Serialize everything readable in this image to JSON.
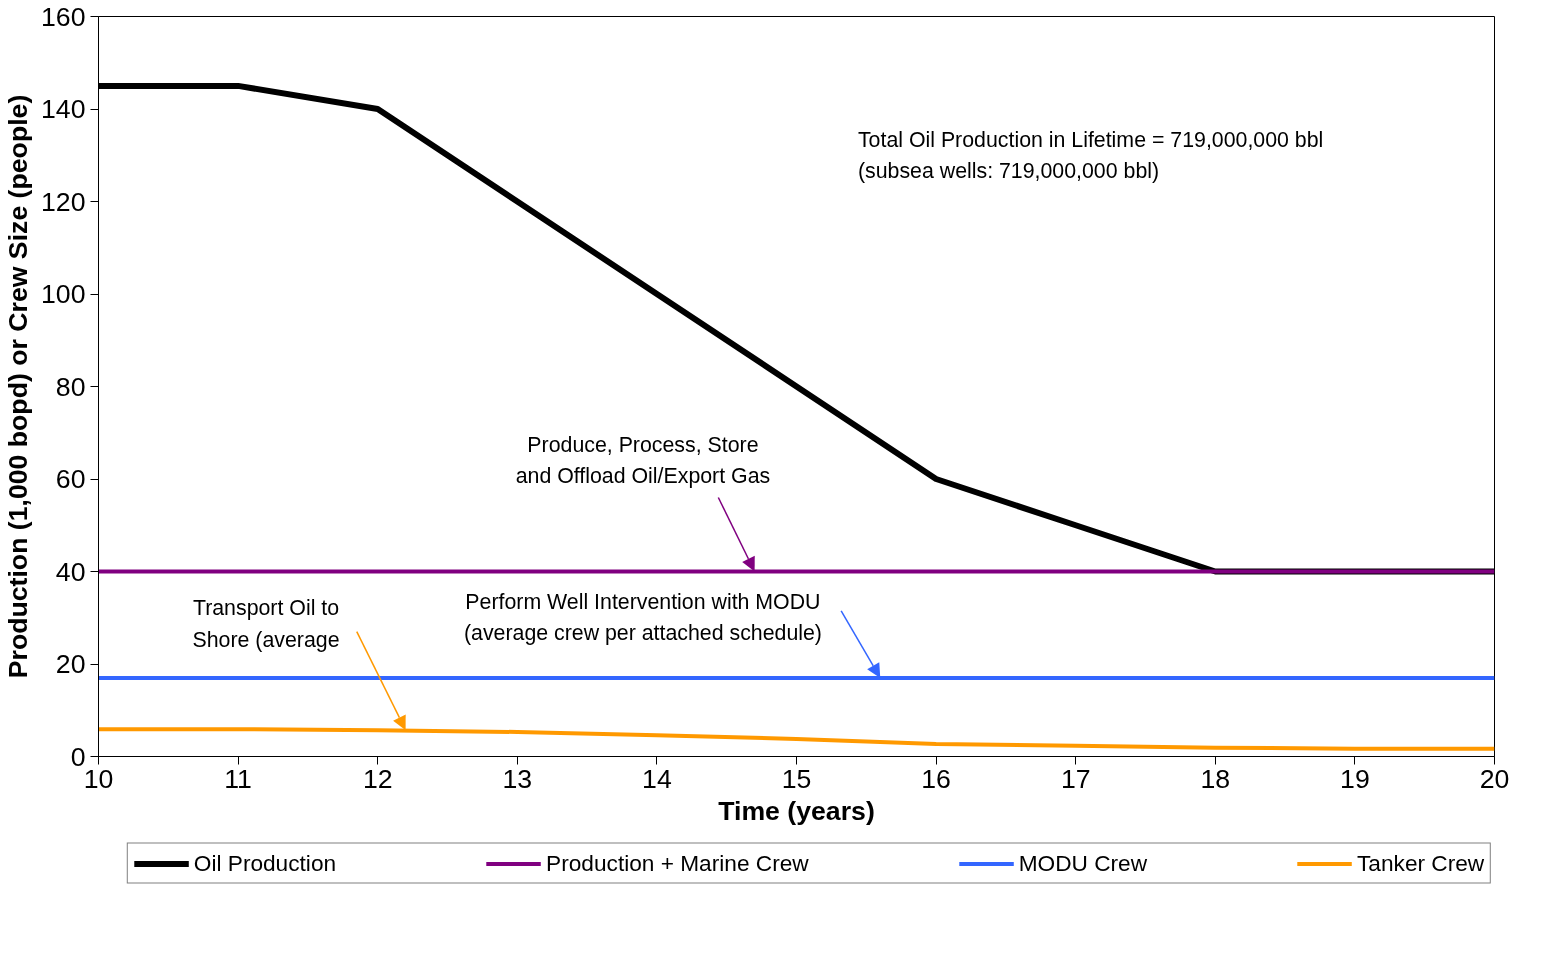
{
  "chart_data": {
    "type": "line",
    "xlabel": "Time (years)",
    "ylabel": "Production (1,000 bopd) or Crew Size (people)",
    "x": [
      10,
      11,
      12,
      13,
      14,
      15,
      16,
      17,
      18,
      19,
      20
    ],
    "series": [
      {
        "name": "Oil Production",
        "color": "#000000",
        "values": [
          145,
          145,
          140,
          120,
          100,
          80,
          60,
          50,
          40,
          40,
          40
        ]
      },
      {
        "name": "Production + Marine Crew",
        "color": "#800080",
        "values": [
          40,
          40,
          40,
          40,
          40,
          40,
          40,
          40,
          40,
          40,
          40
        ]
      },
      {
        "name": "MODU Crew",
        "color": "#3366ff",
        "values": [
          17,
          17,
          17,
          17,
          17,
          17,
          17,
          17,
          17,
          17,
          17
        ]
      },
      {
        "name": "Tanker Crew",
        "color": "#ff9900",
        "values": [
          5.9,
          5.9,
          5.7,
          5.3,
          4.6,
          3.8,
          2.7,
          2.3,
          1.9,
          1.7,
          1.7
        ]
      }
    ],
    "xlim": [
      10,
      20
    ],
    "ylim": [
      0,
      160
    ],
    "xticks": [
      10,
      11,
      12,
      13,
      14,
      15,
      16,
      17,
      18,
      19,
      20
    ],
    "yticks": [
      0,
      20,
      40,
      60,
      80,
      100,
      120,
      140,
      160
    ],
    "annotations": [
      "Total Oil Production in Lifetime = 719,000,000 bbl\n(subsea wells: 719,000,000 bbl)",
      {
        "text": "Produce, Process, Store\nand Offload Oil/Export Gas",
        "x": 14.7,
        "y": 40
      },
      {
        "text": "Perform Well Intervention with MODU\n(average crew per attached schedule)",
        "x": 15.6,
        "y": 17
      },
      {
        "text": "Transport Oil to\nShore (average",
        "x": 12.2,
        "y": 5.7
      }
    ],
    "grid": false,
    "legend": "bottom",
    "marker": "none",
    "line_style": "solid"
  }
}
